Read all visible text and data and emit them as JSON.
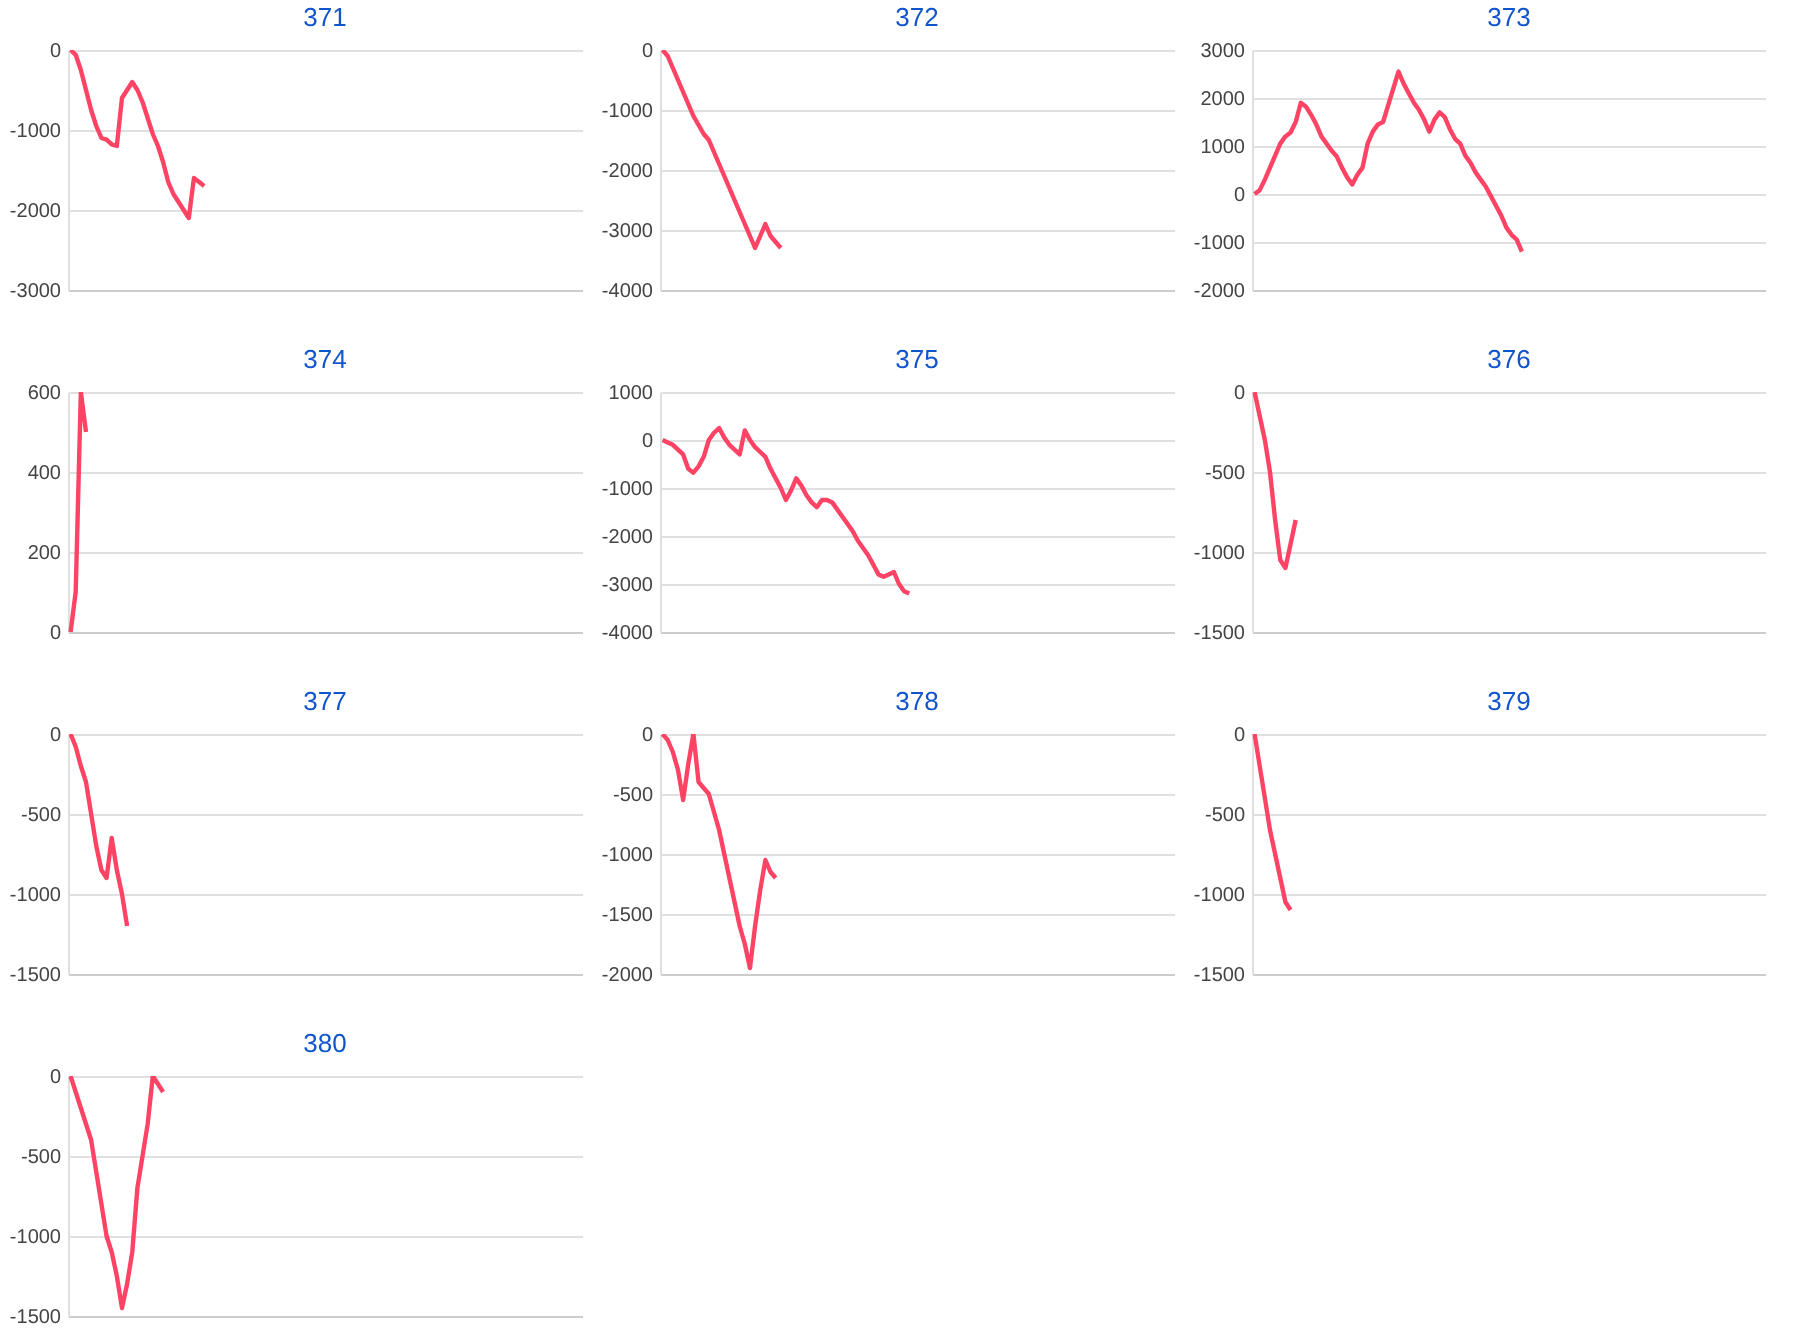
{
  "chart_data": [
    {
      "type": "line",
      "title": "371",
      "categories": [
        null,
        null,
        null,
        null,
        null,
        null,
        null,
        null,
        null,
        null,
        null,
        null,
        null,
        null,
        null,
        null,
        null,
        null,
        null,
        null,
        null,
        null,
        null,
        null,
        null,
        null,
        null,
        null,
        null,
        null,
        null,
        null,
        null,
        null,
        null,
        null,
        null,
        null,
        null,
        null,
        null,
        null,
        null,
        null,
        null,
        null,
        null,
        null,
        null,
        null,
        null,
        null,
        null,
        null,
        null,
        null,
        null,
        null,
        null,
        null,
        null,
        null,
        null,
        null,
        null,
        null,
        null,
        null,
        null,
        null,
        null,
        null,
        null,
        null,
        null,
        null,
        null,
        null,
        null,
        null,
        null,
        null,
        null,
        null,
        null,
        null,
        null,
        null,
        null,
        null,
        null,
        null,
        null,
        null,
        null,
        null,
        null,
        null,
        null,
        null
      ],
      "series": [
        {
          "color": "#fe4365",
          "values": [
            0,
            -60,
            -250,
            -500,
            -750,
            -950,
            -1100,
            -1120,
            -1180,
            -1200,
            -600,
            -500,
            -400,
            -500,
            -650,
            -850,
            -1050,
            -1200,
            -1400,
            -1650,
            -1800,
            -1900,
            -2000,
            -2100,
            -1600,
            -1650,
            -1700,
            null,
            null,
            null,
            null,
            null,
            null,
            null,
            null,
            null,
            null,
            null,
            null,
            null,
            null,
            null,
            null,
            null,
            null,
            null,
            null,
            null,
            null,
            null,
            null,
            null,
            null,
            null,
            null,
            null,
            null,
            null,
            null,
            null,
            null,
            null,
            null,
            null,
            null,
            null,
            null,
            null,
            null,
            null,
            null,
            null,
            null,
            null,
            null,
            null,
            null,
            null,
            null,
            null,
            null,
            null,
            null,
            null,
            null,
            null,
            null,
            null,
            null,
            null,
            null,
            null,
            null,
            null,
            null,
            null,
            null,
            null,
            null,
            null
          ]
        }
      ],
      "ylim": [
        -3000,
        0
      ],
      "yticks": [
        -3000,
        -2000,
        -1000,
        0
      ],
      "grid": "y",
      "tick_labels": "y"
    },
    {
      "type": "line",
      "title": "372",
      "categories": [
        null,
        null,
        null,
        null,
        null,
        null,
        null,
        null,
        null,
        null,
        null,
        null,
        null,
        null,
        null,
        null,
        null,
        null,
        null,
        null,
        null,
        null,
        null,
        null,
        null,
        null,
        null,
        null,
        null,
        null,
        null,
        null,
        null,
        null,
        null,
        null,
        null,
        null,
        null,
        null,
        null,
        null,
        null,
        null,
        null,
        null,
        null,
        null,
        null,
        null,
        null,
        null,
        null,
        null,
        null,
        null,
        null,
        null,
        null,
        null,
        null,
        null,
        null,
        null,
        null,
        null,
        null,
        null,
        null,
        null,
        null,
        null,
        null,
        null,
        null,
        null,
        null,
        null,
        null,
        null,
        null,
        null,
        null,
        null,
        null,
        null,
        null,
        null,
        null,
        null,
        null,
        null,
        null,
        null,
        null,
        null,
        null,
        null,
        null,
        null
      ],
      "series": [
        {
          "color": "#fe4365",
          "values": [
            0,
            -100,
            -300,
            -500,
            -700,
            -900,
            -1100,
            -1250,
            -1400,
            -1500,
            -1700,
            -1900,
            -2100,
            -2300,
            -2500,
            -2700,
            -2900,
            -3100,
            -3300,
            -3100,
            -2900,
            -3100,
            -3200,
            -3300,
            null,
            null,
            null,
            null,
            null,
            null,
            null,
            null,
            null,
            null,
            null,
            null,
            null,
            null,
            null,
            null,
            null,
            null,
            null,
            null,
            null,
            null,
            null,
            null,
            null,
            null,
            null,
            null,
            null,
            null,
            null,
            null,
            null,
            null,
            null,
            null,
            null,
            null,
            null,
            null,
            null,
            null,
            null,
            null,
            null,
            null,
            null,
            null,
            null,
            null,
            null,
            null,
            null,
            null,
            null,
            null,
            null,
            null,
            null,
            null,
            null,
            null,
            null,
            null,
            null,
            null,
            null,
            null,
            null,
            null,
            null,
            null,
            null,
            null,
            null,
            null
          ]
        }
      ],
      "ylim": [
        -4000,
        0
      ],
      "yticks": [
        -4000,
        -3000,
        -2000,
        -1000,
        0
      ],
      "grid": "y",
      "tick_labels": "y"
    },
    {
      "type": "line",
      "title": "373",
      "categories": [
        null,
        null,
        null,
        null,
        null,
        null,
        null,
        null,
        null,
        null,
        null,
        null,
        null,
        null,
        null,
        null,
        null,
        null,
        null,
        null,
        null,
        null,
        null,
        null,
        null,
        null,
        null,
        null,
        null,
        null,
        null,
        null,
        null,
        null,
        null,
        null,
        null,
        null,
        null,
        null,
        null,
        null,
        null,
        null,
        null,
        null,
        null,
        null,
        null,
        null,
        null,
        null,
        null,
        null,
        null,
        null,
        null,
        null,
        null,
        null,
        null,
        null,
        null,
        null,
        null,
        null,
        null,
        null,
        null,
        null,
        null,
        null,
        null,
        null,
        null,
        null,
        null,
        null,
        null,
        null,
        null,
        null,
        null,
        null,
        null,
        null,
        null,
        null,
        null,
        null,
        null,
        null,
        null,
        null,
        null,
        null,
        null,
        null,
        null,
        null
      ],
      "series": [
        {
          "color": "#fe4365",
          "values": [
            0,
            80,
            300,
            550,
            800,
            1050,
            1200,
            1280,
            1500,
            1900,
            1820,
            1650,
            1450,
            1200,
            1050,
            900,
            780,
            550,
            350,
            200,
            400,
            550,
            1050,
            1300,
            1450,
            1500,
            1850,
            2200,
            2550,
            2300,
            2100,
            1900,
            1750,
            1550,
            1300,
            1550,
            1700,
            1600,
            1350,
            1150,
            1050,
            800,
            650,
            450,
            300,
            150,
            -50,
            -250,
            -450,
            -700,
            -850,
            -950,
            -1200,
            null,
            null,
            null,
            null,
            null,
            null,
            null,
            null,
            null,
            null,
            null,
            null,
            null,
            null,
            null,
            null,
            null,
            null,
            null,
            null,
            null,
            null,
            null,
            null,
            null,
            null,
            null,
            null,
            null,
            null,
            null,
            null,
            null,
            null,
            null,
            null,
            null,
            null,
            null,
            null,
            null,
            null,
            null,
            null,
            null,
            null,
            null
          ]
        }
      ],
      "ylim": [
        -2000,
        3000
      ],
      "yticks": [
        -2000,
        -1000,
        0,
        1000,
        2000,
        3000
      ],
      "grid": "y",
      "tick_labels": "y"
    },
    {
      "type": "line",
      "title": "374",
      "categories": [
        null,
        null,
        null,
        null,
        null,
        null,
        null,
        null,
        null,
        null,
        null,
        null,
        null,
        null,
        null,
        null,
        null,
        null,
        null,
        null,
        null,
        null,
        null,
        null,
        null,
        null,
        null,
        null,
        null,
        null,
        null,
        null,
        null,
        null,
        null,
        null,
        null,
        null,
        null,
        null,
        null,
        null,
        null,
        null,
        null,
        null,
        null,
        null,
        null,
        null,
        null,
        null,
        null,
        null,
        null,
        null,
        null,
        null,
        null,
        null,
        null,
        null,
        null,
        null,
        null,
        null,
        null,
        null,
        null,
        null,
        null,
        null,
        null,
        null,
        null,
        null,
        null,
        null,
        null,
        null,
        null,
        null,
        null,
        null,
        null,
        null,
        null,
        null,
        null,
        null,
        null,
        null,
        null,
        null,
        null,
        null,
        null,
        null,
        null,
        null
      ],
      "series": [
        {
          "color": "#fe4365",
          "values": [
            0,
            100,
            600,
            500,
            null,
            null,
            null,
            null,
            null,
            null,
            null,
            null,
            null,
            null,
            null,
            null,
            null,
            null,
            null,
            null,
            null,
            null,
            null,
            null,
            null,
            null,
            null,
            null,
            null,
            null,
            null,
            null,
            null,
            null,
            null,
            null,
            null,
            null,
            null,
            null,
            null,
            null,
            null,
            null,
            null,
            null,
            null,
            null,
            null,
            null,
            null,
            null,
            null,
            null,
            null,
            null,
            null,
            null,
            null,
            null,
            null,
            null,
            null,
            null,
            null,
            null,
            null,
            null,
            null,
            null,
            null,
            null,
            null,
            null,
            null,
            null,
            null,
            null,
            null,
            null,
            null,
            null,
            null,
            null,
            null,
            null,
            null,
            null,
            null,
            null,
            null,
            null,
            null,
            null,
            null,
            null,
            null,
            null,
            null,
            null
          ]
        }
      ],
      "ylim": [
        0,
        600
      ],
      "yticks": [
        0,
        200,
        400,
        600
      ],
      "grid": "y",
      "tick_labels": "y"
    },
    {
      "type": "line",
      "title": "375",
      "categories": [
        null,
        null,
        null,
        null,
        null,
        null,
        null,
        null,
        null,
        null,
        null,
        null,
        null,
        null,
        null,
        null,
        null,
        null,
        null,
        null,
        null,
        null,
        null,
        null,
        null,
        null,
        null,
        null,
        null,
        null,
        null,
        null,
        null,
        null,
        null,
        null,
        null,
        null,
        null,
        null,
        null,
        null,
        null,
        null,
        null,
        null,
        null,
        null,
        null,
        null,
        null,
        null,
        null,
        null,
        null,
        null,
        null,
        null,
        null,
        null,
        null,
        null,
        null,
        null,
        null,
        null,
        null,
        null,
        null,
        null,
        null,
        null,
        null,
        null,
        null,
        null,
        null,
        null,
        null,
        null,
        null,
        null,
        null,
        null,
        null,
        null,
        null,
        null,
        null,
        null,
        null,
        null,
        null,
        null,
        null,
        null,
        null,
        null,
        null,
        null
      ],
      "series": [
        {
          "color": "#fe4365",
          "values": [
            0,
            -50,
            -100,
            -200,
            -300,
            -600,
            -680,
            -550,
            -350,
            0,
            150,
            250,
            50,
            -100,
            -200,
            -300,
            200,
            0,
            -150,
            -250,
            -350,
            -600,
            -800,
            -1000,
            -1250,
            -1050,
            -800,
            -950,
            -1150,
            -1300,
            -1400,
            -1250,
            -1250,
            -1300,
            -1450,
            -1600,
            -1750,
            -1900,
            -2100,
            -2250,
            -2400,
            -2600,
            -2800,
            -2850,
            -2800,
            -2750,
            -3000,
            -3150,
            -3200,
            null,
            null,
            null,
            null,
            null,
            null,
            null,
            null,
            null,
            null,
            null,
            null,
            null,
            null,
            null,
            null,
            null,
            null,
            null,
            null,
            null,
            null,
            null,
            null,
            null,
            null,
            null,
            null,
            null,
            null,
            null,
            null,
            null,
            null,
            null,
            null,
            null,
            null,
            null,
            null,
            null,
            null,
            null,
            null,
            null,
            null,
            null,
            null,
            null,
            null,
            null
          ]
        }
      ],
      "ylim": [
        -4000,
        1000
      ],
      "yticks": [
        -4000,
        -3000,
        -2000,
        -1000,
        0,
        1000
      ],
      "grid": "y",
      "tick_labels": "y"
    },
    {
      "type": "line",
      "title": "376",
      "categories": [
        null,
        null,
        null,
        null,
        null,
        null,
        null,
        null,
        null,
        null,
        null,
        null,
        null,
        null,
        null,
        null,
        null,
        null,
        null,
        null,
        null,
        null,
        null,
        null,
        null,
        null,
        null,
        null,
        null,
        null,
        null,
        null,
        null,
        null,
        null,
        null,
        null,
        null,
        null,
        null,
        null,
        null,
        null,
        null,
        null,
        null,
        null,
        null,
        null,
        null,
        null,
        null,
        null,
        null,
        null,
        null,
        null,
        null,
        null,
        null,
        null,
        null,
        null,
        null,
        null,
        null,
        null,
        null,
        null,
        null,
        null,
        null,
        null,
        null,
        null,
        null,
        null,
        null,
        null,
        null,
        null,
        null,
        null,
        null,
        null,
        null,
        null,
        null,
        null,
        null,
        null,
        null,
        null,
        null,
        null,
        null,
        null,
        null,
        null,
        null
      ],
      "series": [
        {
          "color": "#fe4365",
          "values": [
            0,
            -150,
            -300,
            -500,
            -800,
            -1050,
            -1100,
            -950,
            -800,
            null,
            null,
            null,
            null,
            null,
            null,
            null,
            null,
            null,
            null,
            null,
            null,
            null,
            null,
            null,
            null,
            null,
            null,
            null,
            null,
            null,
            null,
            null,
            null,
            null,
            null,
            null,
            null,
            null,
            null,
            null,
            null,
            null,
            null,
            null,
            null,
            null,
            null,
            null,
            null,
            null,
            null,
            null,
            null,
            null,
            null,
            null,
            null,
            null,
            null,
            null,
            null,
            null,
            null,
            null,
            null,
            null,
            null,
            null,
            null,
            null,
            null,
            null,
            null,
            null,
            null,
            null,
            null,
            null,
            null,
            null,
            null,
            null,
            null,
            null,
            null,
            null,
            null,
            null,
            null,
            null,
            null,
            null,
            null,
            null,
            null,
            null,
            null,
            null,
            null,
            null
          ]
        }
      ],
      "ylim": [
        -1500,
        0
      ],
      "yticks": [
        -1500,
        -1000,
        -500,
        0
      ],
      "grid": "y",
      "tick_labels": "y"
    },
    {
      "type": "line",
      "title": "377",
      "categories": [
        null,
        null,
        null,
        null,
        null,
        null,
        null,
        null,
        null,
        null,
        null,
        null,
        null,
        null,
        null,
        null,
        null,
        null,
        null,
        null,
        null,
        null,
        null,
        null,
        null,
        null,
        null,
        null,
        null,
        null,
        null,
        null,
        null,
        null,
        null,
        null,
        null,
        null,
        null,
        null,
        null,
        null,
        null,
        null,
        null,
        null,
        null,
        null,
        null,
        null,
        null,
        null,
        null,
        null,
        null,
        null,
        null,
        null,
        null,
        null,
        null,
        null,
        null,
        null,
        null,
        null,
        null,
        null,
        null,
        null,
        null,
        null,
        null,
        null,
        null,
        null,
        null,
        null,
        null,
        null,
        null,
        null,
        null,
        null,
        null,
        null,
        null,
        null,
        null,
        null,
        null,
        null,
        null,
        null,
        null,
        null,
        null,
        null,
        null,
        null
      ],
      "series": [
        {
          "color": "#fe4365",
          "values": [
            0,
            -80,
            -200,
            -300,
            -500,
            -700,
            -850,
            -900,
            -650,
            -850,
            -1000,
            -1200,
            null,
            null,
            null,
            null,
            null,
            null,
            null,
            null,
            null,
            null,
            null,
            null,
            null,
            null,
            null,
            null,
            null,
            null,
            null,
            null,
            null,
            null,
            null,
            null,
            null,
            null,
            null,
            null,
            null,
            null,
            null,
            null,
            null,
            null,
            null,
            null,
            null,
            null,
            null,
            null,
            null,
            null,
            null,
            null,
            null,
            null,
            null,
            null,
            null,
            null,
            null,
            null,
            null,
            null,
            null,
            null,
            null,
            null,
            null,
            null,
            null,
            null,
            null,
            null,
            null,
            null,
            null,
            null,
            null,
            null,
            null,
            null,
            null,
            null,
            null,
            null,
            null,
            null,
            null,
            null,
            null,
            null,
            null,
            null,
            null,
            null,
            null,
            null
          ]
        }
      ],
      "ylim": [
        -1500,
        0
      ],
      "yticks": [
        -1500,
        -1000,
        -500,
        0
      ],
      "grid": "y",
      "tick_labels": "y"
    },
    {
      "type": "line",
      "title": "378",
      "categories": [
        null,
        null,
        null,
        null,
        null,
        null,
        null,
        null,
        null,
        null,
        null,
        null,
        null,
        null,
        null,
        null,
        null,
        null,
        null,
        null,
        null,
        null,
        null,
        null,
        null,
        null,
        null,
        null,
        null,
        null,
        null,
        null,
        null,
        null,
        null,
        null,
        null,
        null,
        null,
        null,
        null,
        null,
        null,
        null,
        null,
        null,
        null,
        null,
        null,
        null,
        null,
        null,
        null,
        null,
        null,
        null,
        null,
        null,
        null,
        null,
        null,
        null,
        null,
        null,
        null,
        null,
        null,
        null,
        null,
        null,
        null,
        null,
        null,
        null,
        null,
        null,
        null,
        null,
        null,
        null,
        null,
        null,
        null,
        null,
        null,
        null,
        null,
        null,
        null,
        null,
        null,
        null,
        null,
        null,
        null,
        null,
        null,
        null,
        null,
        null
      ],
      "series": [
        {
          "color": "#fe4365",
          "values": [
            0,
            -50,
            -150,
            -300,
            -550,
            -250,
            0,
            -400,
            -450,
            -500,
            -650,
            -800,
            -1000,
            -1200,
            -1400,
            -1600,
            -1750,
            -1950,
            -1600,
            -1300,
            -1050,
            -1150,
            -1200,
            null,
            null,
            null,
            null,
            null,
            null,
            null,
            null,
            null,
            null,
            null,
            null,
            null,
            null,
            null,
            null,
            null,
            null,
            null,
            null,
            null,
            null,
            null,
            null,
            null,
            null,
            null,
            null,
            null,
            null,
            null,
            null,
            null,
            null,
            null,
            null,
            null,
            null,
            null,
            null,
            null,
            null,
            null,
            null,
            null,
            null,
            null,
            null,
            null,
            null,
            null,
            null,
            null,
            null,
            null,
            null,
            null,
            null,
            null,
            null,
            null,
            null,
            null,
            null,
            null,
            null,
            null,
            null,
            null,
            null,
            null,
            null,
            null,
            null,
            null,
            null,
            null
          ]
        }
      ],
      "ylim": [
        -2000,
        0
      ],
      "yticks": [
        -2000,
        -1500,
        -1000,
        -500,
        0
      ],
      "grid": "y",
      "tick_labels": "y"
    },
    {
      "type": "line",
      "title": "379",
      "categories": [
        null,
        null,
        null,
        null,
        null,
        null,
        null,
        null,
        null,
        null,
        null,
        null,
        null,
        null,
        null,
        null,
        null,
        null,
        null,
        null,
        null,
        null,
        null,
        null,
        null,
        null,
        null,
        null,
        null,
        null,
        null,
        null,
        null,
        null,
        null,
        null,
        null,
        null,
        null,
        null,
        null,
        null,
        null,
        null,
        null,
        null,
        null,
        null,
        null,
        null,
        null,
        null,
        null,
        null,
        null,
        null,
        null,
        null,
        null,
        null,
        null,
        null,
        null,
        null,
        null,
        null,
        null,
        null,
        null,
        null,
        null,
        null,
        null,
        null,
        null,
        null,
        null,
        null,
        null,
        null,
        null,
        null,
        null,
        null,
        null,
        null,
        null,
        null,
        null,
        null,
        null,
        null,
        null,
        null,
        null,
        null,
        null,
        null,
        null,
        null
      ],
      "series": [
        {
          "color": "#fe4365",
          "values": [
            0,
            -200,
            -400,
            -600,
            -750,
            -900,
            -1050,
            -1100,
            null,
            null,
            null,
            null,
            null,
            null,
            null,
            null,
            null,
            null,
            null,
            null,
            null,
            null,
            null,
            null,
            null,
            null,
            null,
            null,
            null,
            null,
            null,
            null,
            null,
            null,
            null,
            null,
            null,
            null,
            null,
            null,
            null,
            null,
            null,
            null,
            null,
            null,
            null,
            null,
            null,
            null,
            null,
            null,
            null,
            null,
            null,
            null,
            null,
            null,
            null,
            null,
            null,
            null,
            null,
            null,
            null,
            null,
            null,
            null,
            null,
            null,
            null,
            null,
            null,
            null,
            null,
            null,
            null,
            null,
            null,
            null,
            null,
            null,
            null,
            null,
            null,
            null,
            null,
            null,
            null,
            null,
            null,
            null,
            null,
            null,
            null,
            null,
            null,
            null,
            null,
            null
          ]
        }
      ],
      "ylim": [
        -1500,
        0
      ],
      "yticks": [
        -1500,
        -1000,
        -500,
        0
      ],
      "grid": "y",
      "tick_labels": "y"
    },
    {
      "type": "line",
      "title": "380",
      "categories": [
        null,
        null,
        null,
        null,
        null,
        null,
        null,
        null,
        null,
        null,
        null,
        null,
        null,
        null,
        null,
        null,
        null,
        null,
        null,
        null,
        null,
        null,
        null,
        null,
        null,
        null,
        null,
        null,
        null,
        null,
        null,
        null,
        null,
        null,
        null,
        null,
        null,
        null,
        null,
        null,
        null,
        null,
        null,
        null,
        null,
        null,
        null,
        null,
        null,
        null,
        null,
        null,
        null,
        null,
        null,
        null,
        null,
        null,
        null,
        null,
        null,
        null,
        null,
        null,
        null,
        null,
        null,
        null,
        null,
        null,
        null,
        null,
        null,
        null,
        null,
        null,
        null,
        null,
        null,
        null,
        null,
        null,
        null,
        null,
        null,
        null,
        null,
        null,
        null,
        null,
        null,
        null,
        null,
        null,
        null,
        null,
        null,
        null,
        null,
        null
      ],
      "series": [
        {
          "color": "#fe4365",
          "values": [
            0,
            -100,
            -200,
            -300,
            -400,
            -600,
            -800,
            -1000,
            -1100,
            -1250,
            -1450,
            -1300,
            -1100,
            -700,
            -500,
            -300,
            0,
            -50,
            -100,
            null,
            null,
            null,
            null,
            null,
            null,
            null,
            null,
            null,
            null,
            null,
            null,
            null,
            null,
            null,
            null,
            null,
            null,
            null,
            null,
            null,
            null,
            null,
            null,
            null,
            null,
            null,
            null,
            null,
            null,
            null,
            null,
            null,
            null,
            null,
            null,
            null,
            null,
            null,
            null,
            null,
            null,
            null,
            null,
            null,
            null,
            null,
            null,
            null,
            null,
            null,
            null,
            null,
            null,
            null,
            null,
            null,
            null,
            null,
            null,
            null,
            null,
            null,
            null,
            null,
            null,
            null,
            null,
            null,
            null,
            null,
            null,
            null,
            null,
            null,
            null,
            null,
            null,
            null,
            null,
            null
          ]
        }
      ],
      "ylim": [
        -1500,
        0
      ],
      "yticks": [
        -1500,
        -1000,
        -500,
        0
      ],
      "grid": "y",
      "tick_labels": "y"
    }
  ]
}
